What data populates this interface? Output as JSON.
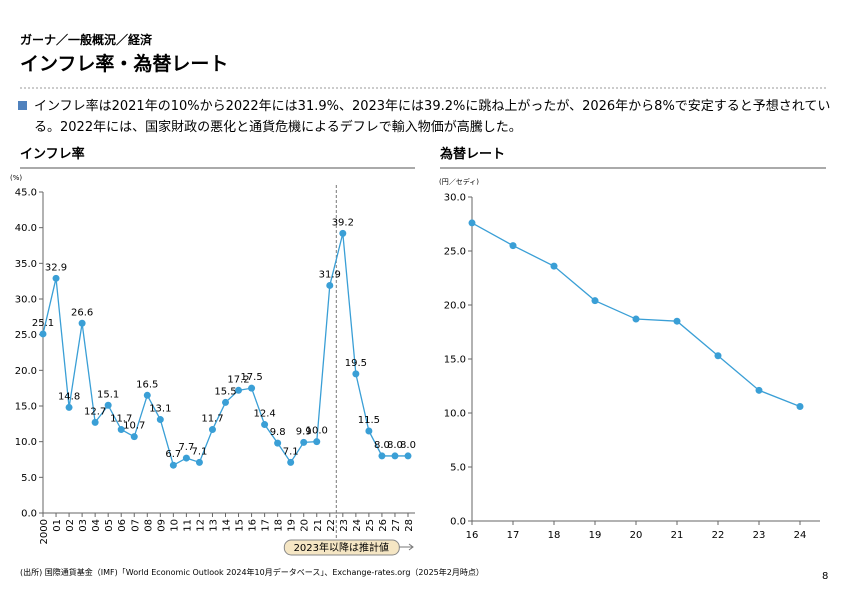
{
  "header": {
    "breadcrumb": "ガーナ／一般概況／経済",
    "title": "インフレ率・為替レート"
  },
  "summary": "インフレ率は2021年の10%から2022年には31.9%、2023年には39.2%に跳ね上がったが、2026年から8%で安定すると予想されている。2022年には、国家財政の悪化と通貨危機によるデフレで輸入物価が高騰した。",
  "chart_data": [
    {
      "type": "line",
      "title": "インフレ率",
      "y_unit": "(%)",
      "color": "#3a9fd6",
      "categories": [
        "2000",
        "01",
        "02",
        "03",
        "04",
        "05",
        "06",
        "07",
        "08",
        "09",
        "10",
        "11",
        "12",
        "13",
        "14",
        "15",
        "16",
        "17",
        "18",
        "19",
        "20",
        "21",
        "22",
        "23",
        "24",
        "25",
        "26",
        "27",
        "28"
      ],
      "values": [
        25.1,
        32.9,
        14.8,
        26.6,
        12.7,
        15.1,
        11.7,
        10.7,
        16.5,
        13.1,
        6.7,
        7.7,
        7.1,
        11.7,
        15.5,
        17.2,
        17.5,
        12.4,
        9.8,
        7.1,
        9.9,
        10.0,
        31.9,
        39.2,
        19.5,
        11.5,
        8.0,
        8.0,
        8.0
      ],
      "value_labels": [
        "25.1",
        "32.9",
        "14.8",
        "26.6",
        "12.7",
        "15.1",
        "11.7",
        "10.7",
        "16.5",
        "13.1",
        "6.7",
        "7.7",
        "7.1",
        "11.7",
        "15.5",
        "17.2",
        "17.5",
        "12.4",
        "9.8",
        "7.1",
        "9.9",
        "10.0",
        "31.9",
        "39.2",
        "19.5",
        "11.5",
        "8.0",
        "8.0",
        "8.0"
      ],
      "annotation": "2023年以降は推計値",
      "ylim": [
        0,
        45
      ],
      "yticks": [
        {
          "value": 0,
          "label": "0.0"
        },
        {
          "value": 5,
          "label": "5.0"
        },
        {
          "value": 10,
          "label": "10.0"
        },
        {
          "value": 15,
          "label": "15.0"
        },
        {
          "value": 20,
          "label": "20.0"
        },
        {
          "value": 25,
          "label": "25.0"
        },
        {
          "value": 30,
          "label": "30.0"
        },
        {
          "value": 35,
          "label": "35.0"
        },
        {
          "value": 40,
          "label": "40.0"
        },
        {
          "value": 45,
          "label": "45.0"
        }
      ]
    },
    {
      "type": "line",
      "title": "為替レート",
      "y_unit": "(円／セディ)",
      "color": "#3a9fd6",
      "categories": [
        "16",
        "17",
        "18",
        "19",
        "20",
        "21",
        "22",
        "23",
        "24"
      ],
      "values": [
        27.6,
        25.5,
        23.6,
        20.4,
        18.7,
        18.5,
        15.3,
        12.1,
        10.6
      ],
      "ylim": [
        0,
        30
      ],
      "yticks": [
        {
          "value": 0,
          "label": "0.0"
        },
        {
          "value": 5,
          "label": "5.0"
        },
        {
          "value": 10,
          "label": "10.0"
        },
        {
          "value": 15,
          "label": "15.0"
        },
        {
          "value": 20,
          "label": "20.0"
        },
        {
          "value": 25,
          "label": "25.0"
        },
        {
          "value": 30,
          "label": "30.0"
        }
      ]
    }
  ],
  "source": "(出所) 国際通貨基金（IMF)「World Economic Outlook 2024年10月データベース」、Exchange-rates.org（2025年2月時点）",
  "page_number": "8"
}
